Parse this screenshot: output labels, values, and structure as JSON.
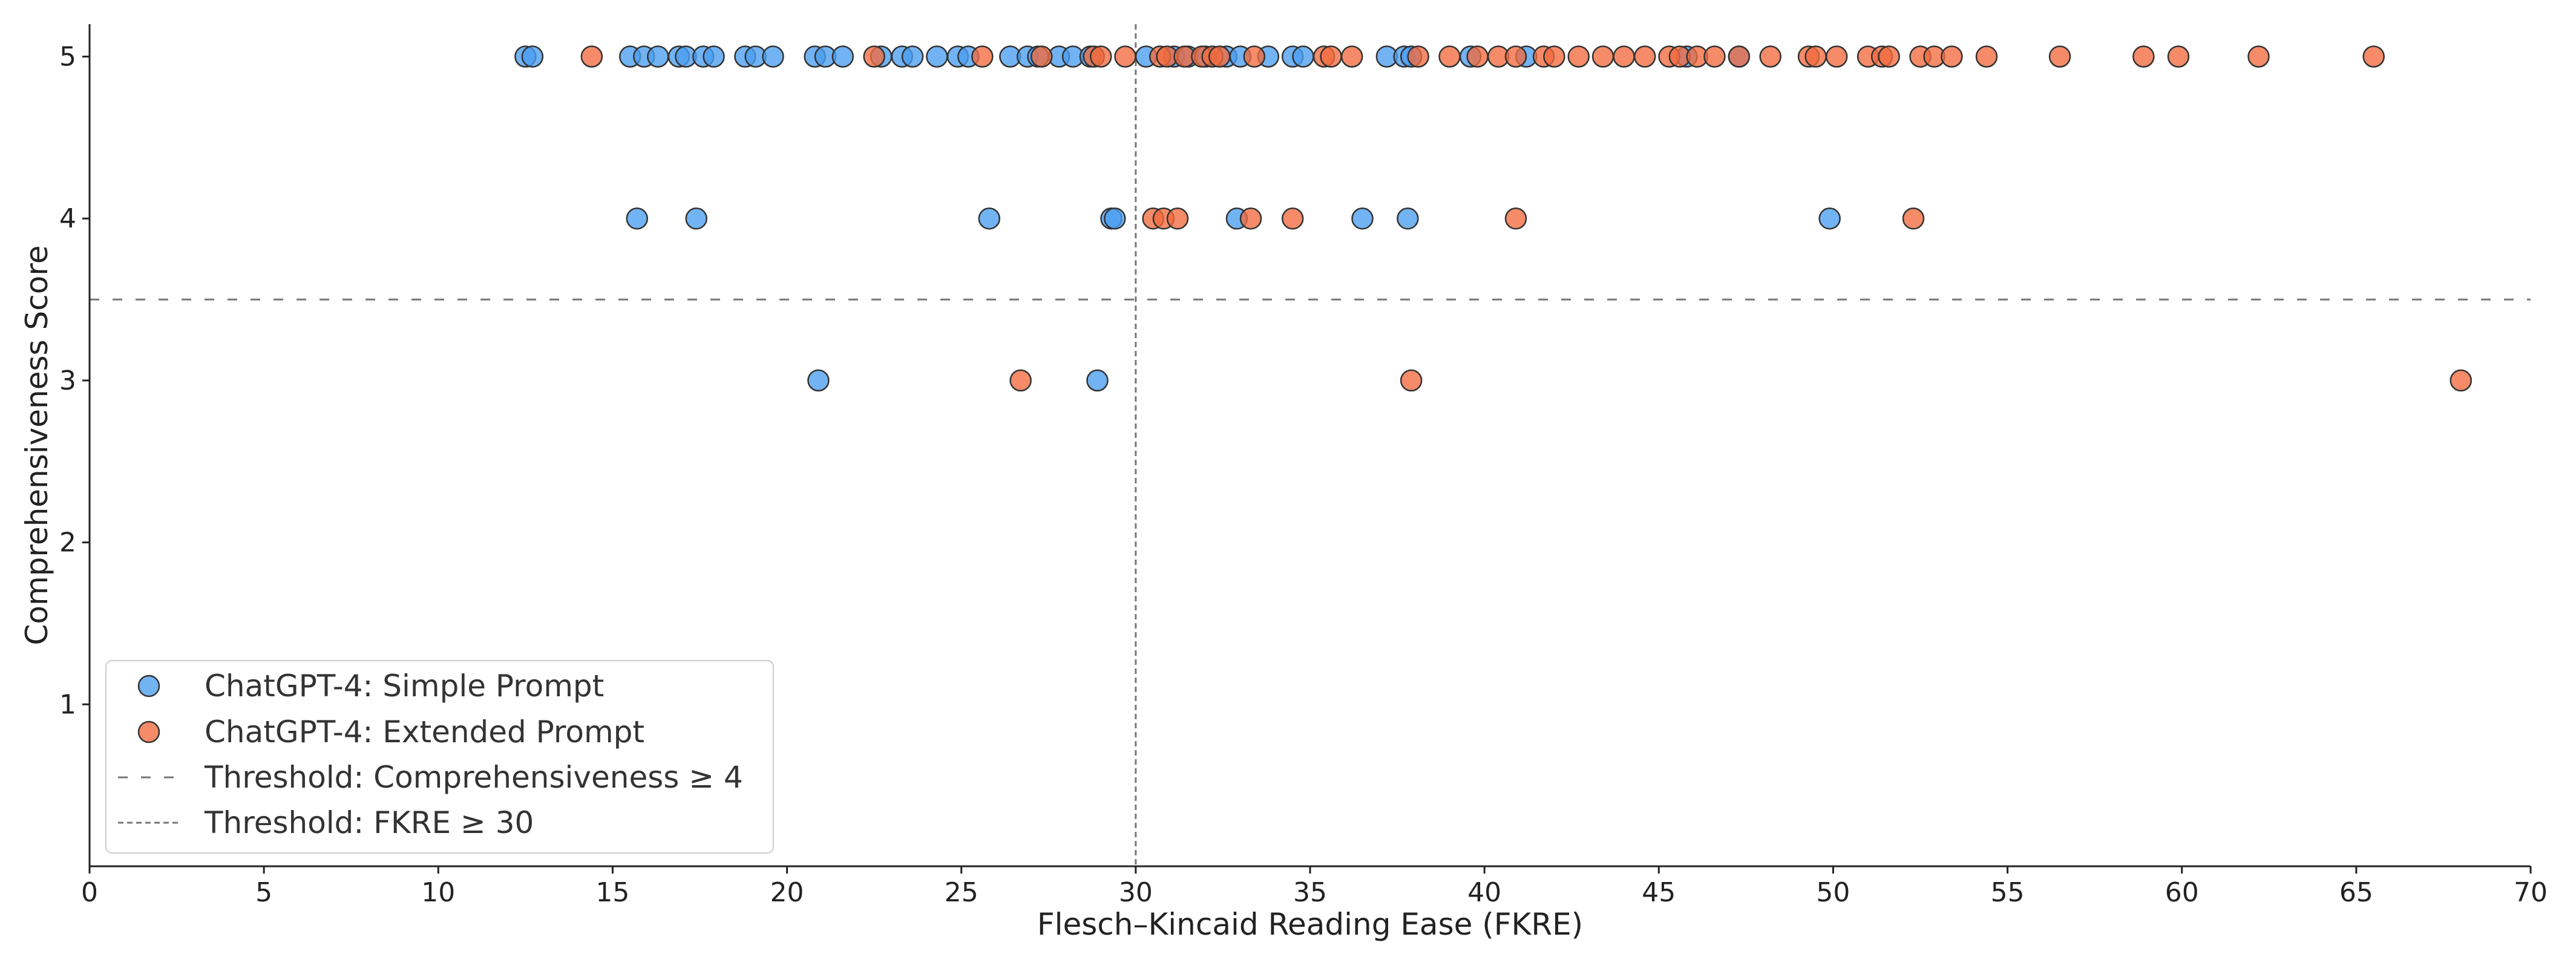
{
  "chart_data": {
    "type": "scatter",
    "xlabel": "Flesch–Kincaid Reading Ease (FKRE)",
    "ylabel": "Comprehensiveness Score",
    "xlim": [
      0,
      70
    ],
    "ylim": [
      0,
      5.2
    ],
    "xticks": [
      "0",
      "5",
      "10",
      "15",
      "20",
      "25",
      "30",
      "35",
      "40",
      "45",
      "50",
      "55",
      "60",
      "65",
      "70"
    ],
    "yticks": [
      "1",
      "2",
      "3",
      "4",
      "5"
    ],
    "grid": false,
    "legend_position": "bottom-left",
    "series": [
      {
        "name": "ChatGPT-4: Simple Prompt",
        "color": "#4a9df0",
        "points": [
          [
            12.5,
            5
          ],
          [
            12.7,
            5
          ],
          [
            15.5,
            5
          ],
          [
            15.9,
            5
          ],
          [
            16.3,
            5
          ],
          [
            16.9,
            5
          ],
          [
            17.1,
            5
          ],
          [
            17.6,
            5
          ],
          [
            17.9,
            5
          ],
          [
            18.8,
            5
          ],
          [
            19.1,
            5
          ],
          [
            19.6,
            5
          ],
          [
            20.8,
            5
          ],
          [
            21.1,
            5
          ],
          [
            21.6,
            5
          ],
          [
            22.7,
            5
          ],
          [
            23.3,
            5
          ],
          [
            23.6,
            5
          ],
          [
            24.3,
            5
          ],
          [
            24.9,
            5
          ],
          [
            25.2,
            5
          ],
          [
            26.4,
            5
          ],
          [
            26.9,
            5
          ],
          [
            27.2,
            5
          ],
          [
            27.8,
            5
          ],
          [
            28.2,
            5
          ],
          [
            28.7,
            5
          ],
          [
            30.3,
            5
          ],
          [
            31.1,
            5
          ],
          [
            31.5,
            5
          ],
          [
            32.0,
            5
          ],
          [
            32.6,
            5
          ],
          [
            33.0,
            5
          ],
          [
            33.8,
            5
          ],
          [
            34.5,
            5
          ],
          [
            34.8,
            5
          ],
          [
            37.2,
            5
          ],
          [
            37.7,
            5
          ],
          [
            37.9,
            5
          ],
          [
            39.6,
            5
          ],
          [
            41.2,
            5
          ],
          [
            45.8,
            5
          ],
          [
            47.3,
            5
          ],
          [
            15.7,
            4
          ],
          [
            17.4,
            4
          ],
          [
            25.8,
            4
          ],
          [
            29.3,
            4
          ],
          [
            29.4,
            4
          ],
          [
            32.9,
            4
          ],
          [
            36.5,
            4
          ],
          [
            37.8,
            4
          ],
          [
            49.9,
            4
          ],
          [
            20.9,
            3
          ],
          [
            28.9,
            3
          ]
        ]
      },
      {
        "name": "ChatGPT-4: Extended Prompt",
        "color": "#f26a3d",
        "points": [
          [
            14.4,
            5
          ],
          [
            22.5,
            5
          ],
          [
            25.6,
            5
          ],
          [
            27.3,
            5
          ],
          [
            28.8,
            5
          ],
          [
            29.0,
            5
          ],
          [
            29.7,
            5
          ],
          [
            30.7,
            5
          ],
          [
            30.9,
            5
          ],
          [
            31.4,
            5
          ],
          [
            31.9,
            5
          ],
          [
            32.2,
            5
          ],
          [
            32.4,
            5
          ],
          [
            33.4,
            5
          ],
          [
            35.4,
            5
          ],
          [
            35.6,
            5
          ],
          [
            36.2,
            5
          ],
          [
            38.1,
            5
          ],
          [
            39.0,
            5
          ],
          [
            39.8,
            5
          ],
          [
            40.4,
            5
          ],
          [
            40.9,
            5
          ],
          [
            41.7,
            5
          ],
          [
            42.0,
            5
          ],
          [
            42.7,
            5
          ],
          [
            43.4,
            5
          ],
          [
            44.0,
            5
          ],
          [
            44.6,
            5
          ],
          [
            45.3,
            5
          ],
          [
            45.6,
            5
          ],
          [
            46.1,
            5
          ],
          [
            46.6,
            5
          ],
          [
            47.3,
            5
          ],
          [
            48.2,
            5
          ],
          [
            49.3,
            5
          ],
          [
            49.5,
            5
          ],
          [
            50.1,
            5
          ],
          [
            51.0,
            5
          ],
          [
            51.4,
            5
          ],
          [
            51.6,
            5
          ],
          [
            52.5,
            5
          ],
          [
            52.9,
            5
          ],
          [
            53.4,
            5
          ],
          [
            54.4,
            5
          ],
          [
            56.5,
            5
          ],
          [
            58.9,
            5
          ],
          [
            59.9,
            5
          ],
          [
            62.2,
            5
          ],
          [
            65.5,
            5
          ],
          [
            30.5,
            4
          ],
          [
            30.8,
            4
          ],
          [
            31.2,
            4
          ],
          [
            33.3,
            4
          ],
          [
            34.5,
            4
          ],
          [
            40.9,
            4
          ],
          [
            52.3,
            4
          ],
          [
            26.7,
            3
          ],
          [
            37.9,
            3
          ],
          [
            68.0,
            3
          ]
        ]
      }
    ],
    "thresholds": [
      {
        "label": "Threshold: Comprehensiveness ≥ 4",
        "axis": "y",
        "value": 3.5
      },
      {
        "label": "Threshold: FKRE ≥ 30",
        "axis": "x",
        "value": 30
      }
    ]
  },
  "colors": {
    "simple": "#4a9df0",
    "extended": "#f26a3d",
    "threshold": "#777777",
    "axis": "#222222"
  }
}
